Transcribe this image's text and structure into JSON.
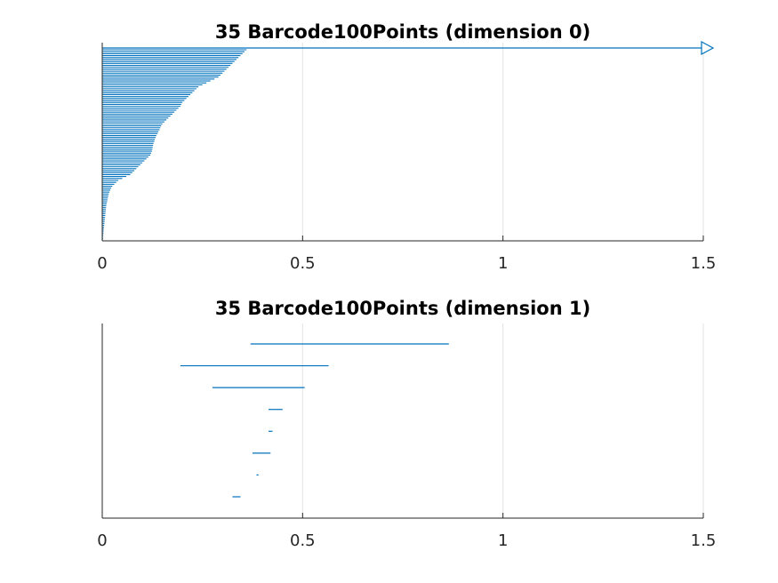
{
  "chart_data": [
    {
      "type": "barcode",
      "title": "35 Barcode100Points (dimension 0)",
      "xlabel": "",
      "ylabel": "",
      "xlim": [
        0,
        1.5
      ],
      "xticks": [
        0,
        0.5,
        1,
        1.5
      ],
      "xtick_labels": [
        "0",
        "0.5",
        "1",
        "1.5"
      ],
      "grid": "vertical",
      "bar_color": "#0072BD",
      "infinite_bar": {
        "birth": 0,
        "arrow_at": 1.5
      },
      "bars": [
        [
          0,
          0.36
        ],
        [
          0,
          0.355
        ],
        [
          0,
          0.35
        ],
        [
          0,
          0.345
        ],
        [
          0,
          0.34
        ],
        [
          0,
          0.335
        ],
        [
          0,
          0.33
        ],
        [
          0,
          0.325
        ],
        [
          0,
          0.32
        ],
        [
          0,
          0.315
        ],
        [
          0,
          0.31
        ],
        [
          0,
          0.305
        ],
        [
          0,
          0.3
        ],
        [
          0,
          0.295
        ],
        [
          0,
          0.29
        ],
        [
          0,
          0.28
        ],
        [
          0,
          0.27
        ],
        [
          0,
          0.26
        ],
        [
          0,
          0.25
        ],
        [
          0,
          0.24
        ],
        [
          0,
          0.235
        ],
        [
          0,
          0.23
        ],
        [
          0,
          0.225
        ],
        [
          0,
          0.22
        ],
        [
          0,
          0.215
        ],
        [
          0,
          0.21
        ],
        [
          0,
          0.205
        ],
        [
          0,
          0.2
        ],
        [
          0,
          0.197
        ],
        [
          0,
          0.195
        ],
        [
          0,
          0.19
        ],
        [
          0,
          0.185
        ],
        [
          0,
          0.18
        ],
        [
          0,
          0.175
        ],
        [
          0,
          0.17
        ],
        [
          0,
          0.165
        ],
        [
          0,
          0.16
        ],
        [
          0,
          0.155
        ],
        [
          0,
          0.15
        ],
        [
          0,
          0.147
        ],
        [
          0,
          0.145
        ],
        [
          0,
          0.143
        ],
        [
          0,
          0.14
        ],
        [
          0,
          0.138
        ],
        [
          0,
          0.135
        ],
        [
          0,
          0.133
        ],
        [
          0,
          0.131
        ],
        [
          0,
          0.13
        ],
        [
          0,
          0.128
        ],
        [
          0,
          0.127
        ],
        [
          0,
          0.126
        ],
        [
          0,
          0.125
        ],
        [
          0,
          0.124
        ],
        [
          0,
          0.122
        ],
        [
          0,
          0.12
        ],
        [
          0,
          0.115
        ],
        [
          0,
          0.11
        ],
        [
          0,
          0.105
        ],
        [
          0,
          0.1
        ],
        [
          0,
          0.095
        ],
        [
          0,
          0.09
        ],
        [
          0,
          0.085
        ],
        [
          0,
          0.08
        ],
        [
          0,
          0.075
        ],
        [
          0,
          0.07
        ],
        [
          0,
          0.06
        ],
        [
          0,
          0.05
        ],
        [
          0,
          0.04
        ],
        [
          0,
          0.035
        ],
        [
          0,
          0.03
        ],
        [
          0,
          0.025
        ],
        [
          0,
          0.022
        ],
        [
          0,
          0.02
        ],
        [
          0,
          0.018
        ],
        [
          0,
          0.016
        ],
        [
          0,
          0.015
        ],
        [
          0,
          0.014
        ],
        [
          0,
          0.013
        ],
        [
          0,
          0.012
        ],
        [
          0,
          0.011
        ],
        [
          0,
          0.01
        ],
        [
          0,
          0.0095
        ],
        [
          0,
          0.009
        ],
        [
          0,
          0.0085
        ],
        [
          0,
          0.008
        ],
        [
          0,
          0.0075
        ],
        [
          0,
          0.007
        ],
        [
          0,
          0.0065
        ],
        [
          0,
          0.006
        ],
        [
          0,
          0.0055
        ],
        [
          0,
          0.005
        ],
        [
          0,
          0.0045
        ],
        [
          0,
          0.004
        ],
        [
          0,
          0.0035
        ],
        [
          0,
          0.003
        ],
        [
          0,
          0.0025
        ],
        [
          0,
          0.002
        ],
        [
          0,
          0.0015
        ],
        [
          0,
          0.001
        ]
      ]
    },
    {
      "type": "barcode",
      "title": "35 Barcode100Points (dimension 1)",
      "xlabel": "",
      "ylabel": "",
      "xlim": [
        0,
        1.5
      ],
      "xticks": [
        0,
        0.5,
        1,
        1.5
      ],
      "xtick_labels": [
        "0",
        "0.5",
        "1",
        "1.5"
      ],
      "grid": "vertical",
      "bar_color": "#0072BD",
      "bars": [
        [
          0.37,
          0.865
        ],
        [
          0.195,
          0.565
        ],
        [
          0.275,
          0.505
        ],
        [
          0.415,
          0.45
        ],
        [
          0.415,
          0.425
        ],
        [
          0.375,
          0.42
        ],
        [
          0.385,
          0.39
        ],
        [
          0.325,
          0.345
        ]
      ]
    }
  ]
}
